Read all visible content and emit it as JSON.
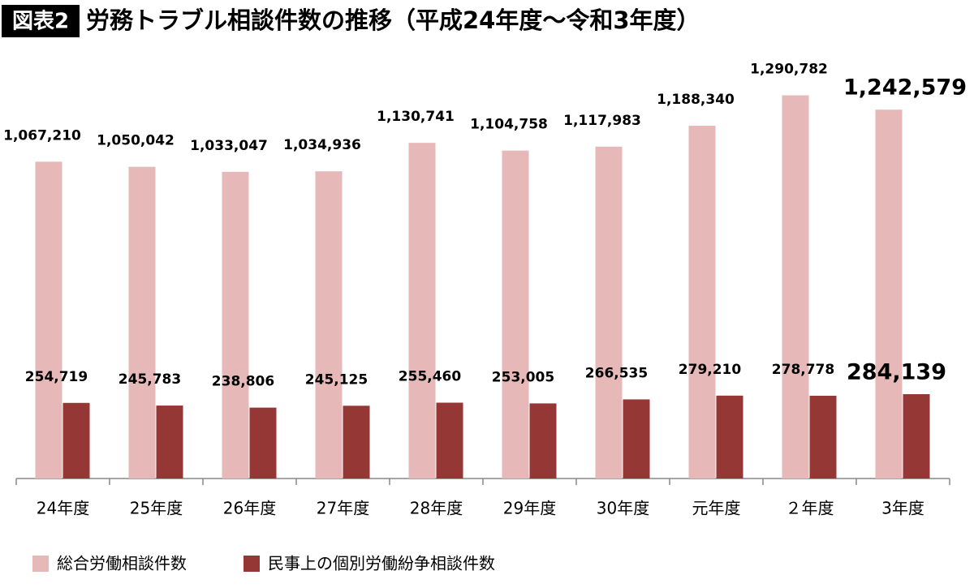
{
  "chart_data": {
    "type": "bar",
    "label": "図表2",
    "title": "労務トラブル相談件数の推移（平成24年度～令和3年度）",
    "categories": [
      "24年度",
      "25年度",
      "26年度",
      "27年度",
      "28年度",
      "29年度",
      "30年度",
      "元年度",
      "２年度",
      "3年度"
    ],
    "series": [
      {
        "name": "総合労働相談件数",
        "color": "#e6b8b7",
        "values": [
          1067210,
          1050042,
          1033047,
          1034936,
          1130741,
          1104758,
          1117983,
          1188340,
          1290782,
          1242579
        ],
        "value_labels": [
          "1,067,210",
          "1,050,042",
          "1,033,047",
          "1,034,936",
          "1,130,741",
          "1,104,758",
          "1,117,983",
          "1,188,340",
          "1,290,782",
          "1,242,579"
        ]
      },
      {
        "name": "民事上の個別労働紛争相談件数",
        "color": "#953735",
        "values": [
          254719,
          245783,
          238806,
          245125,
          255460,
          253005,
          266535,
          279210,
          278778,
          284139
        ],
        "value_labels": [
          "254,719",
          "245,783",
          "238,806",
          "245,125",
          "255,460",
          "253,005",
          "266,535",
          "279,210",
          "278,778",
          "284,139"
        ]
      }
    ]
  }
}
